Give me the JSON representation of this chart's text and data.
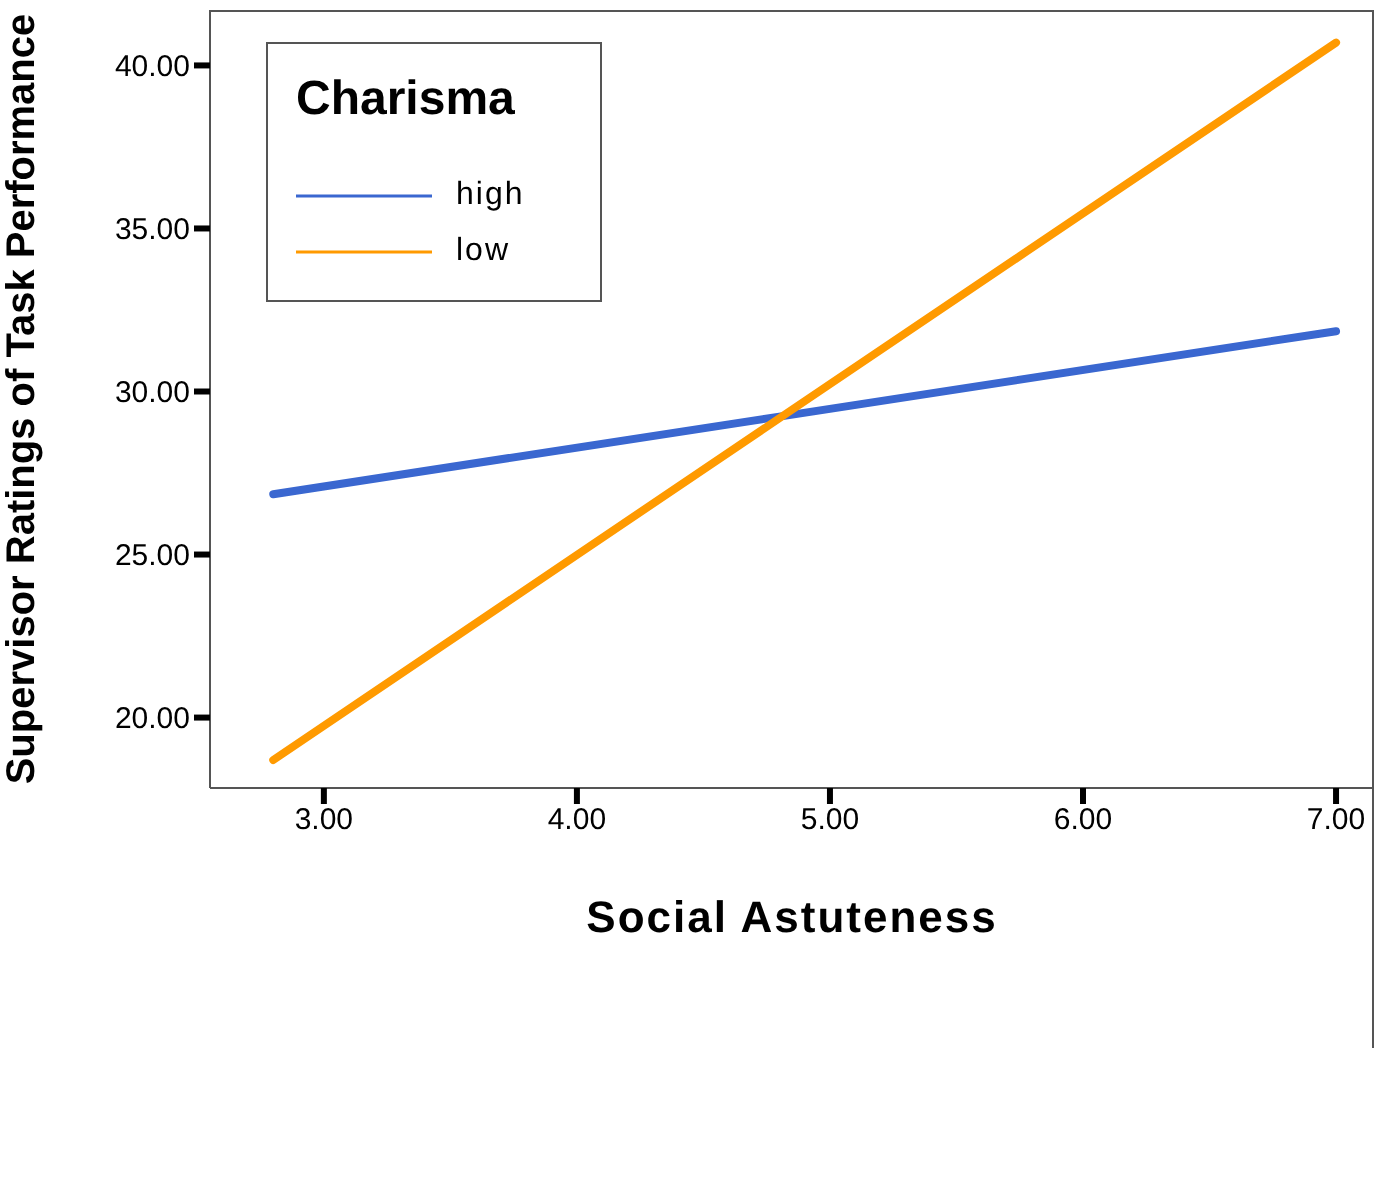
{
  "chart_data": {
    "type": "line",
    "xlabel": "Social Astuteness",
    "ylabel": "Supervisor Ratings of Task Performance",
    "legend_title": "Charisma",
    "legend": "top left",
    "grid": false,
    "marker": "none",
    "line_style": "solid",
    "x": [
      2.8,
      4.8,
      7.0
    ],
    "series": [
      {
        "name": "high",
        "color": "#3a67d0",
        "values": [
          26.85,
          29.23,
          31.85
        ]
      },
      {
        "name": "low",
        "color": "#ff9a00",
        "values": [
          18.7,
          29.18,
          40.7
        ]
      }
    ],
    "xlim": [
      2.55,
      7.15
    ],
    "xticks": [
      {
        "value": 3,
        "label": "3.00"
      },
      {
        "value": 4,
        "label": "4.00"
      },
      {
        "value": 5,
        "label": "5.00"
      },
      {
        "value": 6,
        "label": "6.00"
      },
      {
        "value": 7,
        "label": "7.00"
      }
    ],
    "ylim": [
      17.84,
      41.7
    ],
    "yticks": [
      {
        "value": 20,
        "label": "20.00"
      },
      {
        "value": 25,
        "label": "25.00"
      },
      {
        "value": 30,
        "label": "30.00"
      },
      {
        "value": 35,
        "label": "35.00"
      },
      {
        "value": 40,
        "label": "40.00"
      }
    ]
  }
}
